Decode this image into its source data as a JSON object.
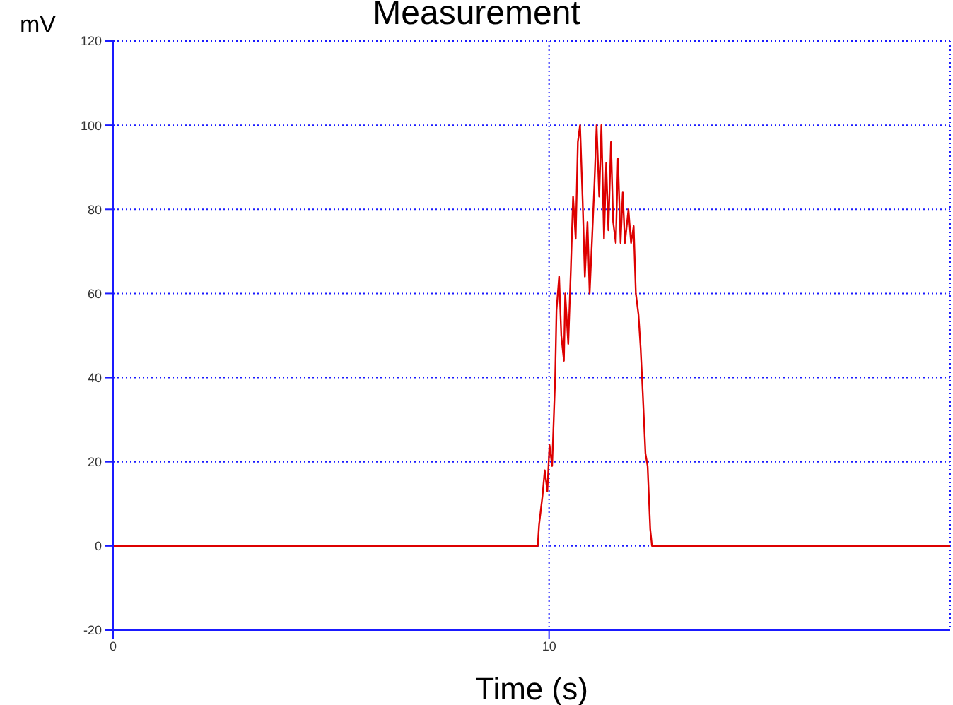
{
  "chart_data": {
    "type": "line",
    "title": "Measurement",
    "xlabel": "Time (s)",
    "ylabel": "mV",
    "xlim": [
      0,
      19.2
    ],
    "xticks": [
      0,
      10
    ],
    "ylim": [
      -20,
      120
    ],
    "yticks": [
      -20,
      0,
      20,
      40,
      60,
      80,
      100,
      120
    ],
    "grid": true,
    "marker": "none",
    "line_style": "solid",
    "series": [
      {
        "color": "#dd0000",
        "x": [
          0,
          9.74,
          9.77,
          9.85,
          9.9,
          9.96,
          10.01,
          10.07,
          10.1,
          10.14,
          10.17,
          10.23,
          10.28,
          10.34,
          10.37,
          10.44,
          10.5,
          10.55,
          10.61,
          10.66,
          10.71,
          10.77,
          10.82,
          10.88,
          10.93,
          10.99,
          11.04,
          11.09,
          11.15,
          11.2,
          11.26,
          11.31,
          11.36,
          11.42,
          11.47,
          11.53,
          11.58,
          11.64,
          11.69,
          11.74,
          11.82,
          11.88,
          11.94,
          11.99,
          12.05,
          12.1,
          12.15,
          12.21,
          12.26,
          12.32,
          12.36,
          19.2
        ],
        "values": [
          0,
          0,
          5,
          12,
          18,
          13,
          24,
          19,
          28,
          40,
          56,
          64,
          50,
          44,
          60,
          48,
          66,
          83,
          73,
          96,
          100,
          82,
          64,
          77,
          60,
          74,
          86,
          100,
          83,
          100,
          73,
          91,
          75,
          96,
          77,
          72,
          92,
          72,
          84,
          72,
          80,
          72,
          76,
          60,
          55,
          47,
          36,
          22,
          19,
          4,
          0,
          0
        ]
      }
    ]
  }
}
